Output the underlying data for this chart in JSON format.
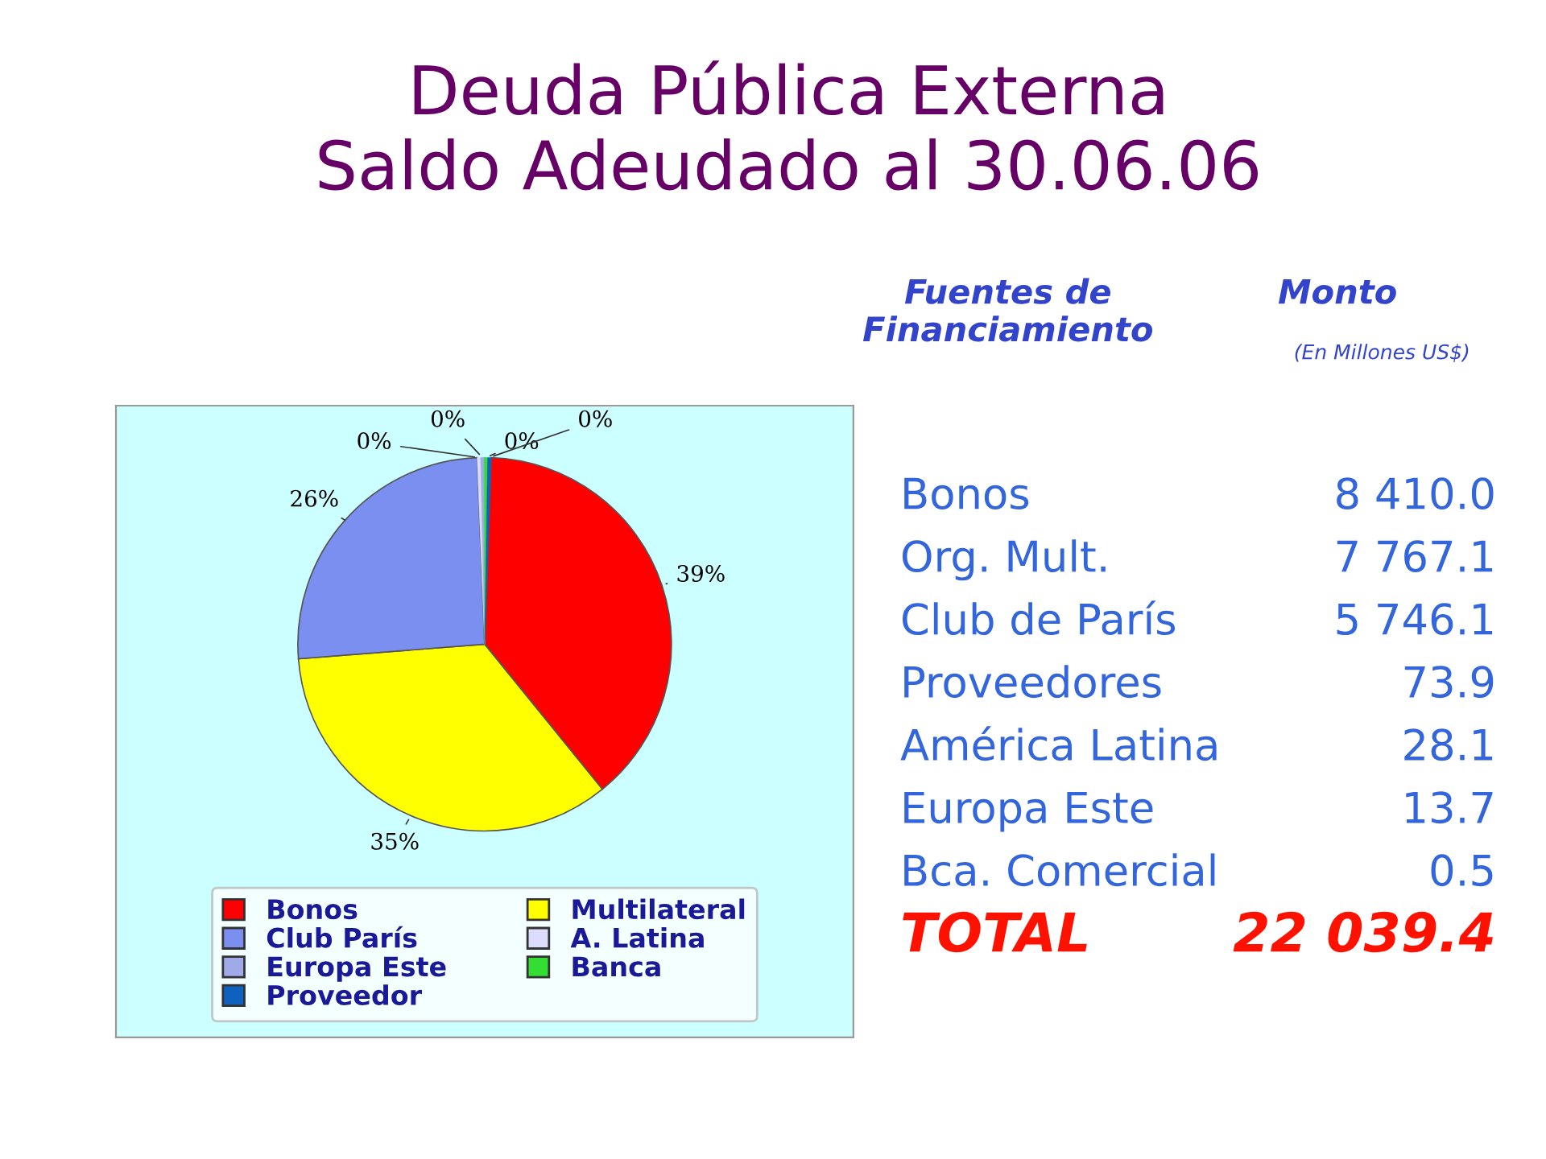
{
  "chart_data": [
    {
      "type": "pie",
      "title": "Deuda Pública Externa\nSaldo Adeudado al 30.06.06",
      "categories": [
        "Bonos",
        "Multilateral",
        "Club París",
        "A. Latina",
        "Europa Este",
        "Banca",
        "Proveedor"
      ],
      "values": [
        38.6,
        34.6,
        25.6,
        0.3,
        0.3,
        0.3,
        0.3
      ],
      "colors": [
        "#ff0000",
        "#ffff00",
        "#7b8ff0",
        "#dcdcff",
        "#a0aae8",
        "#33dd33",
        "#1060c0"
      ],
      "value_labels": [
        "39%",
        "35%",
        "26%",
        "0%",
        "0%",
        "0%",
        "0%"
      ],
      "legend": "bottom"
    },
    {
      "type": "other",
      "annotations": [
        "Fuentes de\nFinanciamiento",
        "Monto",
        "(En Millones US$)"
      ],
      "categories": [
        "Bonos",
        "Org. Mult.",
        "Club de París",
        "Proveedores",
        "América Latina",
        "Europa Este",
        "Bca. Comercial",
        "TOTAL"
      ],
      "value_labels": [
        "8 410.0",
        "7 767.1",
        "5 746.1",
        "73.9",
        "28.1",
        "13.7",
        "0.5",
        "22 039.4"
      ]
    }
  ]
}
